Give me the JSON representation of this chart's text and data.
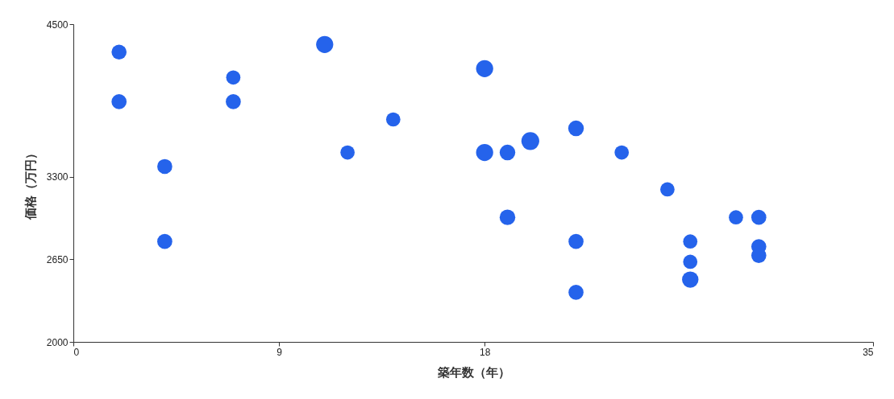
{
  "chart_data": {
    "type": "bubble",
    "xlabel": "築年数（年）",
    "ylabel": "価格（万円）",
    "x": [
      2,
      2,
      4,
      4,
      7,
      7,
      11,
      12,
      14,
      18,
      18,
      19,
      19,
      20,
      22,
      22,
      22,
      24,
      26,
      27,
      27,
      27,
      29,
      30,
      30,
      30
    ],
    "values": [
      4280,
      3890,
      3380,
      2790,
      4080,
      3890,
      4340,
      3490,
      3750,
      4150,
      3490,
      3490,
      2980,
      3580,
      3680,
      2790,
      2390,
      3490,
      3200,
      2790,
      2630,
      2490,
      2980,
      2980,
      2750,
      2680
    ],
    "sizes": [
      0.71,
      0.71,
      0.71,
      0.71,
      0.64,
      0.71,
      0.92,
      0.64,
      0.64,
      0.92,
      0.92,
      0.77,
      0.77,
      1,
      0.77,
      0.71,
      0.71,
      0.64,
      0.64,
      0.64,
      0.64,
      0.85,
      0.64,
      0.71,
      0.71,
      0.71
    ],
    "color": "#2563eb",
    "marker": "circle",
    "xlim": [
      0,
      35
    ],
    "xticks": [
      0,
      9,
      18,
      35
    ],
    "ylim": [
      2000,
      4500
    ],
    "yticks": [
      2000,
      2650,
      3300,
      4500
    ]
  }
}
